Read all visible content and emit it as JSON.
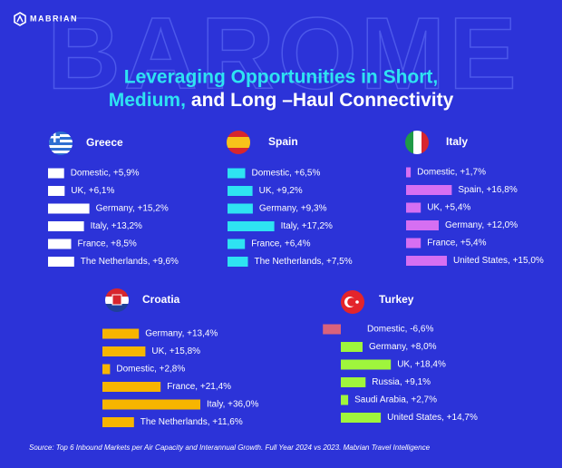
{
  "header": {
    "brand": "MABRIAN",
    "watermark": "BAROME"
  },
  "title": {
    "line1": "Leveraging Opportunities in Short,",
    "line2_highlight": "Medium,",
    "line2_rest": "and Long –Haul Connectivity"
  },
  "chart_data": [
    {
      "type": "bar",
      "orientation": "horizontal",
      "title": "Greece",
      "color": "#ffffff",
      "xlim": [
        0,
        40
      ],
      "values": [
        5.9,
        6.1,
        15.2,
        13.2,
        8.5,
        9.6
      ],
      "value_labels": [
        "Domestic, +5,9%",
        "UK, +6,1%",
        "Germany, +15,2%",
        "Italy, +13,2%",
        "France, +8,5%",
        "The Netherlands, +9,6%"
      ]
    },
    {
      "type": "bar",
      "orientation": "horizontal",
      "title": "Spain",
      "color": "#2ee3f2",
      "xlim": [
        0,
        40
      ],
      "values": [
        6.5,
        9.2,
        9.3,
        17.2,
        6.4,
        7.5
      ],
      "value_labels": [
        "Domestic, +6,5%",
        "UK, +9,2%",
        "Germany, +9,3%",
        "Italy, +17,2%",
        "France, +6,4%",
        "The Netherlands, +7,5%"
      ]
    },
    {
      "type": "bar",
      "orientation": "horizontal",
      "title": "Italy",
      "color": "#d66ff2",
      "xlim": [
        0,
        40
      ],
      "values": [
        1.7,
        16.8,
        5.4,
        12.0,
        5.4,
        15.0
      ],
      "value_labels": [
        "Domestic, +1,7%",
        "Spain, +16,8%",
        "UK, +5,4%",
        "Germany, +12,0%",
        "France, +5,4%",
        "United States, +15,0%"
      ]
    },
    {
      "type": "bar",
      "orientation": "horizontal",
      "title": "Croatia",
      "color": "#f7b500",
      "xlim": [
        0,
        40
      ],
      "values": [
        13.4,
        15.8,
        2.8,
        21.4,
        36.0,
        11.6
      ],
      "value_labels": [
        "Germany, +13,4%",
        "UK, +15,8%",
        "Domestic, +2,8%",
        "France, +21,4%",
        "Italy, +36,0%",
        "The Netherlands, +11,6%"
      ]
    },
    {
      "type": "bar",
      "orientation": "horizontal",
      "title": "Turkey",
      "color": "#9ff53c",
      "negative_color": "#d9627c",
      "xlim": [
        -10,
        30
      ],
      "values": [
        -6.6,
        8.0,
        18.4,
        9.1,
        2.7,
        14.7
      ],
      "value_labels": [
        "Domestic, -6,6%",
        "Germany, +8,0%",
        "UK, +18,4%",
        "Russia, +9,1%",
        "Saudi Arabia, +2,7%",
        "United States, +14,7%"
      ]
    }
  ],
  "footer": {
    "source": "Source:  Top 6 Inbound Markets per Air Capacity and Interannual Growth. Full Year 2024 vs 2023. Mabrian Travel Intelligence"
  }
}
